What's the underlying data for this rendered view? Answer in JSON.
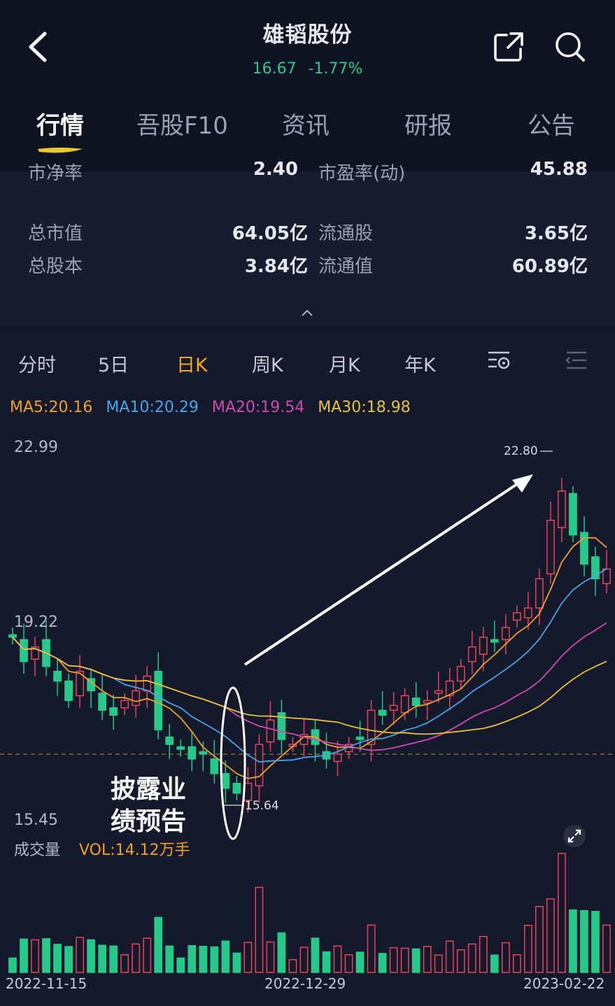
{
  "header": {
    "stock_name": "雄韬股份",
    "price": "16.67",
    "change_pct": "-1.77%",
    "tabs": [
      {
        "label": "行情",
        "active": true
      },
      {
        "label": "吾股F10",
        "active": false
      },
      {
        "label": "资讯",
        "active": false
      },
      {
        "label": "研报",
        "active": false
      },
      {
        "label": "公告",
        "active": false
      }
    ]
  },
  "stats": {
    "cut_row": {
      "label1": "市净率",
      "value1": "2.40",
      "label2": "市盈率(动)",
      "value2": "45.88"
    },
    "rows": [
      {
        "label1": "总市值",
        "value1": "64.05亿",
        "label2": "流通股",
        "value2": "3.65亿"
      },
      {
        "label1": "总股本",
        "value1": "3.84亿",
        "label2": "流通值",
        "value2": "60.89亿"
      }
    ]
  },
  "periods": [
    {
      "label": "分时",
      "active": false
    },
    {
      "label": "5日",
      "active": false
    },
    {
      "label": "日K",
      "active": true
    },
    {
      "label": "周K",
      "active": false
    },
    {
      "label": "月K",
      "active": false
    },
    {
      "label": "年K",
      "active": false
    }
  ],
  "ma": [
    {
      "label": "MA5:20.16",
      "color": "#f0a02a"
    },
    {
      "label": "MA10:20.29",
      "color": "#4aa3e8"
    },
    {
      "label": "MA20:19.54",
      "color": "#d04bb0"
    },
    {
      "label": "MA30:18.98",
      "color": "#e8c23a"
    }
  ],
  "chart": {
    "y_max": "22.99",
    "y_mid": "19.22",
    "y_min": "15.45",
    "high_marker": "22.80",
    "low_marker": "15.64",
    "annotation": "披露业绩预告",
    "volume_label": "成交量",
    "volume_value": "VOL:14.12万手",
    "dates": [
      "2022-11-15",
      "2022-12-29",
      "2023-02-22"
    ],
    "colors": {
      "up": "#e8455a",
      "down": "#27c98a",
      "background": "#141a2c"
    }
  },
  "chart_data": {
    "type": "candlestick",
    "ylim": [
      15.45,
      22.99
    ],
    "series_close": [
      19.1,
      18.6,
      18.9,
      18.5,
      18.2,
      17.8,
      18.4,
      18.0,
      17.6,
      17.5,
      17.8,
      18.0,
      18.3,
      17.2,
      16.9,
      16.8,
      16.6,
      16.7,
      16.3,
      16.0,
      15.9,
      16.1,
      16.9,
      17.4,
      17.0,
      16.9,
      17.1,
      16.9,
      16.6,
      16.7,
      16.9,
      17.0,
      17.6,
      17.5,
      17.7,
      17.9,
      17.7,
      17.8,
      18.0,
      18.2,
      18.5,
      18.9,
      19.1,
      19.0,
      19.3,
      19.6,
      19.7,
      20.3,
      21.5,
      22.1,
      21.2,
      20.6,
      20.3,
      20.5
    ],
    "ma_values": {
      "MA5": 20.16,
      "MA10": 20.29,
      "MA20": 19.54,
      "MA30": 18.98
    },
    "volume_unit": "万手"
  }
}
